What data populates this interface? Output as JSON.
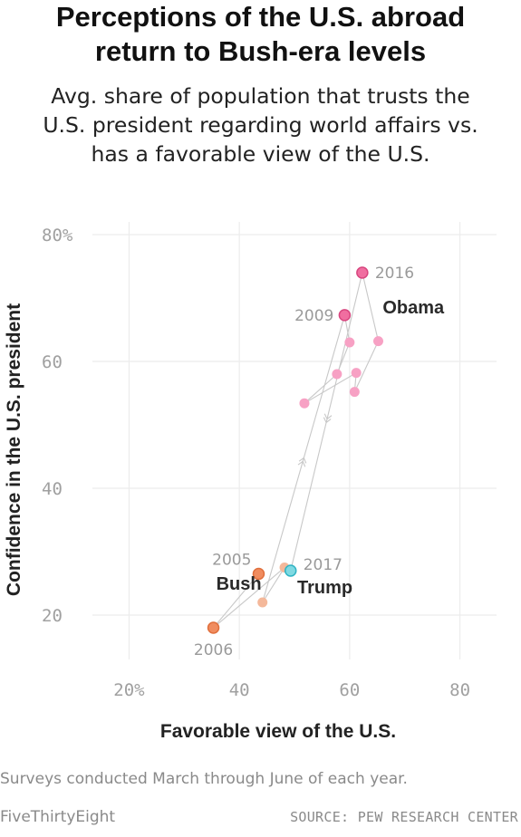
{
  "header": {
    "title_line1": "Perceptions of the U.S. abroad",
    "title_line2": "return to Bush-era levels",
    "subtitle_line1": "Avg. share of population that trusts the",
    "subtitle_line2": "U.S. president regarding world affairs vs.",
    "subtitle_line3": "has a favorable view of the U.S."
  },
  "footer": {
    "note": "Surveys conducted March through June of each year.",
    "brand": "FiveThirtyEight",
    "source": "SOURCE: PEW RESEARCH CENTER"
  },
  "chart_data": {
    "type": "scatter",
    "xlabel": "Favorable view of the U.S.",
    "ylabel": "Confidence in the U.S. president",
    "xlim": [
      15,
      85
    ],
    "ylim": [
      13,
      82
    ],
    "x_ticks": [
      20,
      40,
      60,
      80
    ],
    "y_ticks": [
      20,
      40,
      60,
      80
    ],
    "x_tick_labels": [
      "20%",
      "40",
      "60",
      "80"
    ],
    "y_tick_labels": [
      "20",
      "40",
      "60",
      "80%"
    ],
    "grid": true,
    "colors": {
      "bush": "#f4b89a",
      "bush_highlight": "#f08c5f",
      "bush_stroke": "#e06f3c",
      "obama": "#f7a1c4",
      "obama_highlight": "#f06ea0",
      "obama_stroke": "#d8467f",
      "trump": "#7fd9e2",
      "trump_stroke": "#2fb3c3",
      "path": "#c8c8c8",
      "grid": "#ececec",
      "tick": "#a0a0a0"
    },
    "points": [
      {
        "year": 2005,
        "x": 43.5,
        "y": 26.5,
        "president": "Bush",
        "label": "2005",
        "highlight": true
      },
      {
        "year": 2006,
        "x": 35.3,
        "y": 18.0,
        "president": "Bush",
        "label": "2006",
        "highlight": true
      },
      {
        "year": 2007,
        "x": 48.2,
        "y": 27.5,
        "president": "Bush",
        "label": "",
        "highlight": false
      },
      {
        "year": 2008,
        "x": 44.2,
        "y": 22.0,
        "president": "Bush",
        "label": "",
        "highlight": false
      },
      {
        "year": 2009,
        "x": 59.1,
        "y": 67.3,
        "president": "Obama",
        "label": "2009",
        "highlight": true
      },
      {
        "year": 2010,
        "x": 60.0,
        "y": 63.0,
        "president": "Obama",
        "label": "",
        "highlight": false
      },
      {
        "year": 2011,
        "x": 57.7,
        "y": 58.0,
        "president": "Obama",
        "label": "",
        "highlight": false
      },
      {
        "year": 2012,
        "x": 51.8,
        "y": 53.4,
        "president": "Obama",
        "label": "",
        "highlight": false
      },
      {
        "year": 2013,
        "x": 61.2,
        "y": 58.2,
        "president": "Obama",
        "label": "",
        "highlight": false
      },
      {
        "year": 2014,
        "x": 60.9,
        "y": 55.2,
        "president": "Obama",
        "label": "",
        "highlight": false
      },
      {
        "year": 2015,
        "x": 65.2,
        "y": 63.2,
        "president": "Obama",
        "label": "",
        "highlight": false
      },
      {
        "year": 2016,
        "x": 62.3,
        "y": 74.0,
        "president": "Obama",
        "label": "2016",
        "highlight": true
      },
      {
        "year": 2017,
        "x": 49.3,
        "y": 27.0,
        "president": "Trump",
        "label": "2017",
        "highlight": true
      }
    ],
    "annotations": [
      {
        "text": "Obama",
        "x": 66.0,
        "y": 67.6
      },
      {
        "text": "Bush",
        "x": 35.8,
        "y": 24.0
      },
      {
        "text": "Trump",
        "x": 50.5,
        "y": 23.4
      }
    ]
  }
}
